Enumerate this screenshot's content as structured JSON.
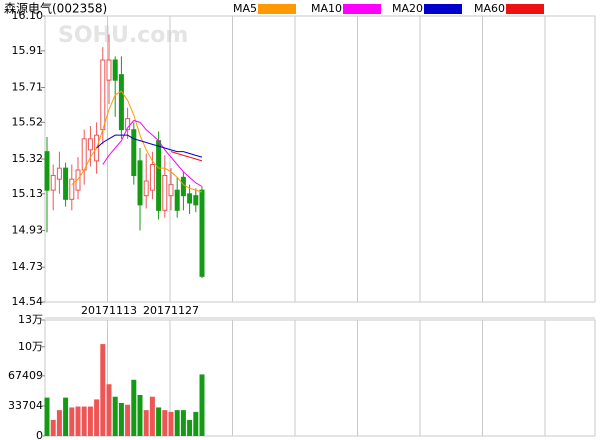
{
  "chart_data": [
    {
      "type": "candlestick",
      "title": "森源电气(002358)",
      "watermark": "SOHU.com",
      "categories": [
        null,
        null,
        null,
        null,
        null,
        null,
        null,
        null,
        null,
        null,
        "20171113",
        null,
        null,
        null,
        null,
        null,
        null,
        null,
        null,
        null,
        "20171127",
        null,
        null,
        null,
        null,
        null
      ],
      "open": [
        15.36,
        15.15,
        15.21,
        15.27,
        15.1,
        15.15,
        15.26,
        15.37,
        15.31,
        15.48,
        15.75,
        15.86,
        15.78,
        15.48,
        15.48,
        15.31,
        15.12,
        15.15,
        15.42,
        15.04,
        15.12,
        15.15,
        15.22,
        15.13,
        15.12,
        15.15
      ],
      "high": [
        15.44,
        15.29,
        15.36,
        15.3,
        15.29,
        15.33,
        15.48,
        15.5,
        15.52,
        15.93,
        16.0,
        15.88,
        15.88,
        15.6,
        15.52,
        15.38,
        15.35,
        15.36,
        15.47,
        15.34,
        15.27,
        15.22,
        15.25,
        15.18,
        15.16,
        15.17
      ],
      "low": [
        14.92,
        15.04,
        15.13,
        15.06,
        15.04,
        15.1,
        15.18,
        15.28,
        15.24,
        15.4,
        15.62,
        15.55,
        15.43,
        15.43,
        15.18,
        14.93,
        15.05,
        15.1,
        14.99,
        15.0,
        15.04,
        15.0,
        15.04,
        15.02,
        15.03,
        14.67
      ],
      "close": [
        15.15,
        15.23,
        15.27,
        15.1,
        15.21,
        15.26,
        15.43,
        15.43,
        15.45,
        15.86,
        15.86,
        15.75,
        15.48,
        15.54,
        15.23,
        15.07,
        15.2,
        15.29,
        15.04,
        15.23,
        15.18,
        15.04,
        15.12,
        15.08,
        15.07,
        14.68
      ],
      "up_color": "#ee5555",
      "down_color": "#159a15",
      "series": [
        {
          "name": "MA5",
          "color": "#ff9900",
          "values": [
            null,
            null,
            null,
            null,
            15.18,
            15.21,
            15.26,
            15.33,
            15.38,
            15.48,
            15.59,
            15.67,
            15.69,
            15.64,
            15.56,
            15.45,
            15.37,
            15.31,
            15.27,
            15.27,
            15.25,
            15.22,
            15.18,
            15.16,
            15.15,
            15.14
          ]
        },
        {
          "name": "MA10",
          "color": "#ff00ff",
          "values": [
            null,
            null,
            null,
            null,
            null,
            null,
            null,
            null,
            null,
            15.29,
            15.34,
            15.38,
            15.42,
            15.49,
            15.53,
            15.52,
            15.48,
            15.45,
            15.42,
            15.37,
            15.33,
            15.29,
            15.25,
            15.22,
            15.19,
            15.17
          ]
        },
        {
          "name": "MA20",
          "color": "#0000cc",
          "values": [
            null,
            null,
            null,
            null,
            null,
            null,
            null,
            null,
            15.38,
            15.41,
            15.43,
            15.45,
            15.45,
            15.45,
            15.43,
            15.42,
            15.41,
            15.4,
            15.39,
            15.38,
            15.37,
            15.36,
            15.36,
            15.35,
            15.34,
            15.33
          ]
        },
        {
          "name": "MA60",
          "color": "#ee1111",
          "values": [
            null,
            null,
            null,
            null,
            null,
            null,
            null,
            null,
            null,
            null,
            null,
            null,
            null,
            null,
            null,
            null,
            null,
            null,
            null,
            null,
            15.36,
            15.35,
            15.34,
            15.33,
            15.32,
            15.31
          ]
        }
      ],
      "ylim": [
        14.54,
        16.1
      ],
      "yticks": [
        {
          "value": 16.1,
          "label": "16.10"
        },
        15.91,
        15.71,
        15.52,
        15.32,
        15.13,
        14.93,
        14.73,
        14.54
      ]
    },
    {
      "type": "bar",
      "values": [
        43000,
        18000,
        29000,
        43000,
        32000,
        33000,
        33000,
        33000,
        41000,
        103000,
        58000,
        44000,
        37000,
        35000,
        63000,
        46000,
        29000,
        44000,
        32000,
        29000,
        27000,
        29000,
        29000,
        18000,
        27000,
        69000
      ],
      "ylim": [
        0,
        130000
      ],
      "yticks": [
        {
          "value": 130000,
          "label": "13万"
        },
        {
          "value": 100000,
          "label": "10万"
        },
        67409,
        33704,
        0
      ]
    }
  ]
}
